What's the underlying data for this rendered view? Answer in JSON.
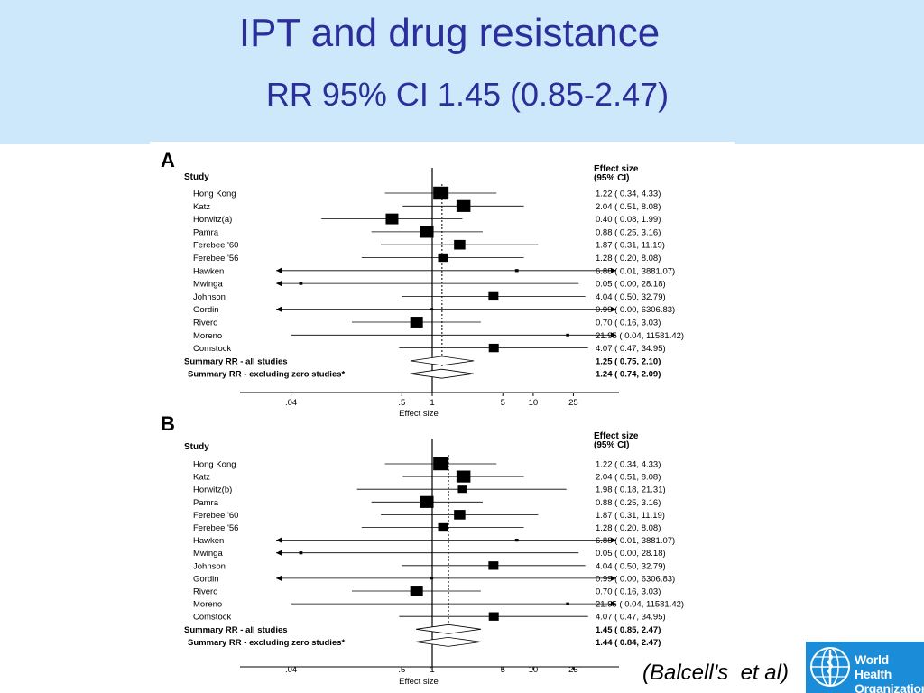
{
  "slide": {
    "title": "IPT and drug resistance",
    "subtitle": "RR 95% CI 1.45 (0.85-2.47)",
    "citation": "(Balcell's  et al)",
    "logo": {
      "line1": "World Health",
      "line2": "Organization"
    },
    "colors": {
      "header_bg": "#cde8fb",
      "title": "#2b2f9b",
      "logo_bg": "#1a8cd8"
    }
  },
  "chart_data": [
    {
      "type": "forest",
      "panel": "A",
      "study_header": "Study",
      "effect_header": [
        "Effect size",
        "(95% CI)"
      ],
      "xlabel": "Effect size",
      "x_scale": "log",
      "xticks": [
        0.04,
        0.5,
        1,
        5,
        10,
        25
      ],
      "xtick_labels": [
        ".04",
        ".5",
        "1",
        "5",
        "10",
        "25"
      ],
      "xlim": [
        0.02,
        40
      ],
      "studies": [
        {
          "name": "Hong Kong",
          "rr": 1.22,
          "lo": 0.34,
          "hi": 4.33,
          "label": "1.22 ( 0.34, 4.33)",
          "weight": 5
        },
        {
          "name": "Katz",
          "rr": 2.04,
          "lo": 0.51,
          "hi": 8.08,
          "label": "2.04 ( 0.51, 8.08)",
          "weight": 4.5
        },
        {
          "name": "Horwitz(a)",
          "rr": 0.4,
          "lo": 0.08,
          "hi": 1.99,
          "label": "0.40 ( 0.08, 1.99)",
          "weight": 4
        },
        {
          "name": "Pamra",
          "rr": 0.88,
          "lo": 0.25,
          "hi": 3.16,
          "label": "0.88 ( 0.25, 3.16)",
          "weight": 4.5
        },
        {
          "name": "Ferebee '60",
          "rr": 1.87,
          "lo": 0.31,
          "hi": 11.19,
          "label": "1.87 ( 0.31, 11.19)",
          "weight": 3.5
        },
        {
          "name": "Ferebee '56",
          "rr": 1.28,
          "lo": 0.2,
          "hi": 8.08,
          "label": "1.28 ( 0.20, 8.08)",
          "weight": 3
        },
        {
          "name": "Hawken",
          "rr": 6.88,
          "lo": 0.01,
          "hi": 3881.07,
          "label": "6.88 ( 0.01, 3881.07)",
          "weight": 0.6
        },
        {
          "name": "Mwinga",
          "rr": 0.05,
          "lo": 0.0,
          "hi": 28.18,
          "label": "0.05 ( 0.00, 28.18)",
          "weight": 0.6
        },
        {
          "name": "Johnson",
          "rr": 4.04,
          "lo": 0.5,
          "hi": 32.79,
          "label": "4.04 ( 0.50, 32.79)",
          "weight": 3
        },
        {
          "name": "Gordin",
          "rr": 0.99,
          "lo": 0.0,
          "hi": 6306.83,
          "label": "0.99 ( 0.00, 6306.83)",
          "weight": 0.4
        },
        {
          "name": "Rivero",
          "rr": 0.7,
          "lo": 0.16,
          "hi": 3.03,
          "label": "0.70 ( 0.16, 3.03)",
          "weight": 4
        },
        {
          "name": "Moreno",
          "rr": 21.95,
          "lo": 0.04,
          "hi": 11581.42,
          "label": "21.95 ( 0.04, 11581.42)",
          "weight": 0.5
        },
        {
          "name": "Comstock",
          "rr": 4.07,
          "lo": 0.47,
          "hi": 34.95,
          "label": "4.07 ( 0.47, 34.95)",
          "weight": 3
        }
      ],
      "summaries": [
        {
          "name": "Summary RR - all studies",
          "rr": 1.25,
          "lo": 0.75,
          "hi": 2.1,
          "label": "1.25 ( 0.75, 2.10)"
        },
        {
          "name": "Summary RR - excluding zero studies*",
          "rr": 1.24,
          "lo": 0.74,
          "hi": 2.09,
          "label": "1.24 ( 0.74, 2.09)"
        }
      ]
    },
    {
      "type": "forest",
      "panel": "B",
      "study_header": "Study",
      "effect_header": [
        "Effect size",
        "(95% CI)"
      ],
      "xlabel": "Effect size",
      "x_scale": "log",
      "xticks": [
        0.04,
        0.5,
        1,
        5,
        10,
        25
      ],
      "xtick_labels": [
        ".04",
        ".5",
        "1",
        "5",
        "10",
        "25"
      ],
      "xlim": [
        0.02,
        40
      ],
      "studies": [
        {
          "name": "Hong Kong",
          "rr": 1.22,
          "lo": 0.34,
          "hi": 4.33,
          "label": "1.22 ( 0.34, 4.33)",
          "weight": 5
        },
        {
          "name": "Katz",
          "rr": 2.04,
          "lo": 0.51,
          "hi": 8.08,
          "label": "2.04 ( 0.51, 8.08)",
          "weight": 4.5
        },
        {
          "name": "Horwitz(b)",
          "rr": 1.98,
          "lo": 0.18,
          "hi": 21.31,
          "label": "1.98 ( 0.18, 21.31)",
          "weight": 2.5
        },
        {
          "name": "Pamra",
          "rr": 0.88,
          "lo": 0.25,
          "hi": 3.16,
          "label": "0.88 ( 0.25, 3.16)",
          "weight": 4.5
        },
        {
          "name": "Ferebee '60",
          "rr": 1.87,
          "lo": 0.31,
          "hi": 11.19,
          "label": "1.87 ( 0.31, 11.19)",
          "weight": 3.5
        },
        {
          "name": "Ferebee '56",
          "rr": 1.28,
          "lo": 0.2,
          "hi": 8.08,
          "label": "1.28 ( 0.20, 8.08)",
          "weight": 3
        },
        {
          "name": "Hawken",
          "rr": 6.88,
          "lo": 0.01,
          "hi": 3881.07,
          "label": "6.88 ( 0.01, 3881.07)",
          "weight": 0.6
        },
        {
          "name": "Mwinga",
          "rr": 0.05,
          "lo": 0.0,
          "hi": 28.18,
          "label": "0.05 ( 0.00, 28.18)",
          "weight": 0.6
        },
        {
          "name": "Johnson",
          "rr": 4.04,
          "lo": 0.5,
          "hi": 32.79,
          "label": "4.04 ( 0.50, 32.79)",
          "weight": 3
        },
        {
          "name": "Gordin",
          "rr": 0.99,
          "lo": 0.0,
          "hi": 6306.83,
          "label": "0.99 ( 0.00, 6306.83)",
          "weight": 0.4
        },
        {
          "name": "Rivero",
          "rr": 0.7,
          "lo": 0.16,
          "hi": 3.03,
          "label": "0.70 ( 0.16, 3.03)",
          "weight": 4
        },
        {
          "name": "Moreno",
          "rr": 21.95,
          "lo": 0.04,
          "hi": 11581.42,
          "label": "21.95 ( 0.04, 11581.42)",
          "weight": 0.5
        },
        {
          "name": "Comstock",
          "rr": 4.07,
          "lo": 0.47,
          "hi": 34.95,
          "label": "4.07 ( 0.47, 34.95)",
          "weight": 3
        }
      ],
      "summaries": [
        {
          "name": "Summary RR - all studies",
          "rr": 1.45,
          "lo": 0.85,
          "hi": 2.47,
          "label": "1.45 ( 0.85, 2.47)"
        },
        {
          "name": "Summary RR - excluding zero studies*",
          "rr": 1.44,
          "lo": 0.84,
          "hi": 2.47,
          "label": "1.44 ( 0.84, 2.47)"
        }
      ]
    }
  ]
}
